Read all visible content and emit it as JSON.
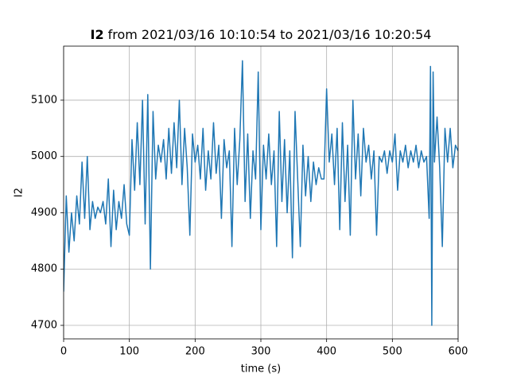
{
  "chart_data": {
    "type": "line",
    "title_parts": [
      "I2",
      "from 2021/03/16 10:10:54 to 2021/03/16 10:20:54"
    ],
    "x_label": "time (s)",
    "y_label": "I2",
    "xlim": [
      0,
      600
    ],
    "ylim": [
      4676,
      5196
    ],
    "xticks": [
      0,
      100,
      200,
      300,
      400,
      500,
      600
    ],
    "yticks": [
      4700,
      4800,
      4900,
      5000,
      5100
    ],
    "grid": true,
    "x": [
      0,
      4,
      8,
      12,
      16,
      20,
      24,
      28,
      32,
      36,
      40,
      44,
      48,
      52,
      56,
      60,
      64,
      68,
      72,
      76,
      80,
      84,
      88,
      92,
      96,
      100,
      104,
      108,
      112,
      116,
      120,
      124,
      128,
      132,
      136,
      140,
      144,
      148,
      152,
      156,
      160,
      164,
      168,
      172,
      176,
      180,
      184,
      188,
      192,
      196,
      200,
      204,
      208,
      212,
      216,
      220,
      224,
      228,
      232,
      236,
      240,
      244,
      248,
      252,
      256,
      260,
      264,
      268,
      272,
      276,
      280,
      284,
      288,
      292,
      296,
      300,
      304,
      308,
      312,
      316,
      320,
      324,
      328,
      332,
      336,
      340,
      344,
      348,
      352,
      356,
      360,
      364,
      368,
      372,
      376,
      380,
      384,
      388,
      392,
      396,
      400,
      404,
      408,
      412,
      416,
      420,
      424,
      428,
      432,
      436,
      440,
      444,
      448,
      452,
      456,
      460,
      464,
      468,
      472,
      476,
      480,
      484,
      488,
      492,
      496,
      500,
      504,
      508,
      512,
      516,
      520,
      524,
      528,
      532,
      536,
      540,
      544,
      548,
      552,
      556,
      558,
      560,
      562,
      564,
      568,
      572,
      576,
      580,
      584,
      588,
      592,
      596,
      600
    ],
    "series": [
      {
        "name": "I2",
        "color": "#1f77b4",
        "values": [
          4760,
          4930,
          4830,
          4900,
          4850,
          4930,
          4880,
          4990,
          4890,
          5000,
          4870,
          4920,
          4890,
          4910,
          4900,
          4920,
          4880,
          4960,
          4840,
          4940,
          4870,
          4920,
          4890,
          4950,
          4880,
          4860,
          5030,
          4940,
          5060,
          4950,
          5100,
          4880,
          5110,
          4800,
          5080,
          4960,
          5020,
          4990,
          5030,
          4960,
          5050,
          4970,
          5060,
          4980,
          5100,
          4950,
          5050,
          4980,
          4860,
          5040,
          4990,
          5020,
          4960,
          5050,
          4940,
          5010,
          4960,
          5060,
          4970,
          5020,
          4890,
          5030,
          4980,
          5010,
          4840,
          5050,
          4950,
          5030,
          5170,
          4920,
          5040,
          4890,
          5010,
          4960,
          5150,
          4870,
          5020,
          4960,
          5040,
          4950,
          5010,
          4840,
          5080,
          4920,
          5030,
          4900,
          5010,
          4820,
          5080,
          4960,
          4840,
          5020,
          4930,
          5000,
          4920,
          4990,
          4950,
          4980,
          4960,
          4960,
          5120,
          4990,
          5040,
          4950,
          5050,
          4870,
          5060,
          4920,
          5020,
          4860,
          5100,
          4960,
          5040,
          4930,
          5050,
          4990,
          5020,
          4960,
          5010,
          4860,
          5000,
          4990,
          5010,
          4970,
          5010,
          4990,
          5040,
          4940,
          5010,
          4990,
          5020,
          4980,
          5010,
          4990,
          5020,
          4980,
          5010,
          4990,
          5000,
          4890,
          5160,
          4700,
          5150,
          4990,
          5070,
          4980,
          4840,
          5050,
          4990,
          5050,
          4980,
          5020,
          5010
        ]
      }
    ]
  }
}
